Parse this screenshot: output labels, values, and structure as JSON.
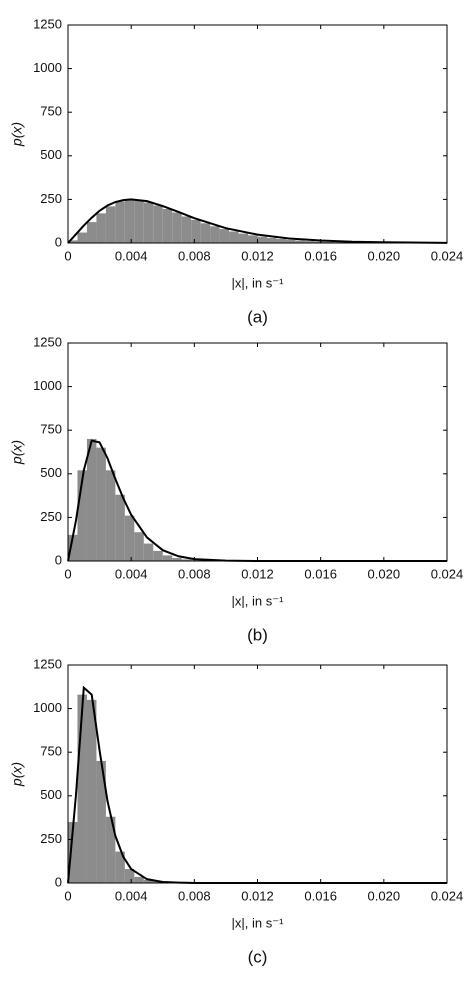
{
  "chart_data": [
    {
      "type": "histogram",
      "caption": "(a)",
      "ylabel": "p(x)",
      "xlabel": "|x|, in s⁻¹",
      "bins": [
        0,
        0.0006,
        0.0012,
        0.0018,
        0.0024,
        0.003,
        0.0036,
        0.0042,
        0.0048,
        0.0054,
        0.006,
        0.0066,
        0.0072,
        0.0078,
        0.0084,
        0.009,
        0.0096,
        0.0102,
        0.0108,
        0.0114,
        0.012,
        0.0126,
        0.0132,
        0.0138,
        0.0144,
        0.015,
        0.0156,
        0.0162,
        0.0168,
        0.0174,
        0.018,
        0.0186,
        0.0192,
        0.0198,
        0.0204,
        0.021,
        0.0216,
        0.0222,
        0.0228,
        0.0234,
        0.024
      ],
      "counts": [
        15,
        60,
        120,
        170,
        210,
        238,
        248,
        245,
        232,
        215,
        195,
        175,
        152,
        132,
        113,
        96,
        80,
        66,
        54,
        44,
        36,
        29,
        23,
        18,
        14,
        11,
        8,
        6,
        5,
        4,
        3,
        2,
        2,
        1,
        1,
        1,
        0,
        0,
        0,
        0
      ],
      "color": "#8c8c8c",
      "fit": {
        "color": "#000000",
        "x": [
          0,
          0.0005,
          0.001,
          0.0015,
          0.002,
          0.0025,
          0.003,
          0.0035,
          0.004,
          0.005,
          0.006,
          0.007,
          0.008,
          0.01,
          0.012,
          0.014,
          0.016,
          0.018,
          0.02,
          0.024
        ],
        "values": [
          0,
          50,
          100,
          145,
          185,
          215,
          235,
          246,
          250,
          240,
          212,
          178,
          142,
          85,
          48,
          26,
          14,
          7,
          4,
          1
        ]
      },
      "xlim": [
        0,
        0.024
      ],
      "ylim": [
        0,
        1250
      ],
      "xticks": [
        0,
        0.004,
        0.008,
        0.012,
        0.016,
        {
          "value": 0.02,
          "label": "0.020"
        },
        0.024
      ],
      "yticks": [
        0,
        250,
        500,
        750,
        1000,
        1250
      ]
    },
    {
      "type": "histogram",
      "caption": "(b)",
      "ylabel": "p(x)",
      "xlabel": "|x|, in s⁻¹",
      "bins": [
        0,
        0.0006,
        0.0012,
        0.0018,
        0.0024,
        0.003,
        0.0036,
        0.0042,
        0.0048,
        0.0054,
        0.006,
        0.0066,
        0.0072,
        0.0078,
        0.0084,
        0.009,
        0.0096,
        0.0102,
        0.0108,
        0.0114,
        0.012,
        0.0126,
        0.0132,
        0.0138,
        0.0144,
        0.015,
        0.0156,
        0.0162,
        0.0168,
        0.0174,
        0.018,
        0.0186,
        0.0192,
        0.0198,
        0.0204,
        0.021,
        0.0216,
        0.0222,
        0.0228,
        0.0234,
        0.024
      ],
      "counts": [
        150,
        520,
        700,
        650,
        520,
        380,
        260,
        165,
        100,
        58,
        32,
        17,
        9,
        5,
        3,
        2,
        1,
        0,
        0,
        0,
        0,
        0,
        0,
        0,
        0,
        0,
        0,
        0,
        0,
        0,
        0,
        0,
        0,
        0,
        0,
        0,
        0,
        0,
        0,
        0
      ],
      "color": "#8c8c8c",
      "fit": {
        "color": "#000000",
        "x": [
          0,
          0.0005,
          0.001,
          0.0015,
          0.002,
          0.0025,
          0.003,
          0.0035,
          0.004,
          0.005,
          0.006,
          0.007,
          0.008,
          0.01,
          0.012,
          0.014,
          0.016,
          0.018,
          0.02,
          0.024
        ],
        "values": [
          0,
          230,
          520,
          690,
          680,
          590,
          470,
          360,
          265,
          135,
          62,
          27,
          11,
          2,
          0,
          0,
          0,
          0,
          0,
          0
        ]
      },
      "xlim": [
        0,
        0.024
      ],
      "ylim": [
        0,
        1250
      ],
      "xticks": [
        0,
        0.004,
        0.008,
        0.012,
        0.016,
        {
          "value": 0.02,
          "label": "0.020"
        },
        0.024
      ],
      "yticks": [
        0,
        250,
        500,
        750,
        1000,
        1250
      ]
    },
    {
      "type": "histogram",
      "caption": "(c)",
      "ylabel": "p(x)",
      "xlabel": "|x|, in s⁻¹",
      "bins": [
        0,
        0.0006,
        0.0012,
        0.0018,
        0.0024,
        0.003,
        0.0036,
        0.0042,
        0.0048,
        0.0054,
        0.006,
        0.0066,
        0.0072,
        0.0078,
        0.0084,
        0.009,
        0.0096,
        0.0102,
        0.0108,
        0.0114,
        0.012,
        0.0126,
        0.0132,
        0.0138,
        0.0144,
        0.015,
        0.0156,
        0.0162,
        0.0168,
        0.0174,
        0.018,
        0.0186,
        0.0192,
        0.0198,
        0.0204,
        0.021,
        0.0216,
        0.0222,
        0.0228,
        0.0234,
        0.024
      ],
      "counts": [
        350,
        1080,
        1050,
        700,
        380,
        180,
        80,
        35,
        18,
        12,
        10,
        8,
        7,
        6,
        5,
        4,
        4,
        3,
        3,
        2,
        2,
        2,
        1,
        0,
        0,
        0,
        0,
        0,
        0,
        0,
        0,
        0,
        0,
        0,
        0,
        0,
        0,
        0,
        0,
        0
      ],
      "color": "#8c8c8c",
      "fit": {
        "color": "#000000",
        "x": [
          0,
          0.0005,
          0.001,
          0.0015,
          0.002,
          0.0025,
          0.003,
          0.0035,
          0.004,
          0.005,
          0.006,
          0.007,
          0.008,
          0.01,
          0.012,
          0.014,
          0.016,
          0.018,
          0.02,
          0.024
        ],
        "values": [
          0,
          500,
          1120,
          1080,
          760,
          470,
          270,
          150,
          80,
          22,
          6,
          2,
          0,
          0,
          0,
          0,
          0,
          0,
          0,
          0
        ]
      },
      "xlim": [
        0,
        0.024
      ],
      "ylim": [
        0,
        1250
      ],
      "xticks": [
        0,
        0.004,
        0.008,
        0.012,
        0.016,
        {
          "value": 0.02,
          "label": "0.020"
        },
        0.024
      ],
      "yticks": [
        0,
        250,
        500,
        750,
        1000,
        1250
      ]
    }
  ]
}
